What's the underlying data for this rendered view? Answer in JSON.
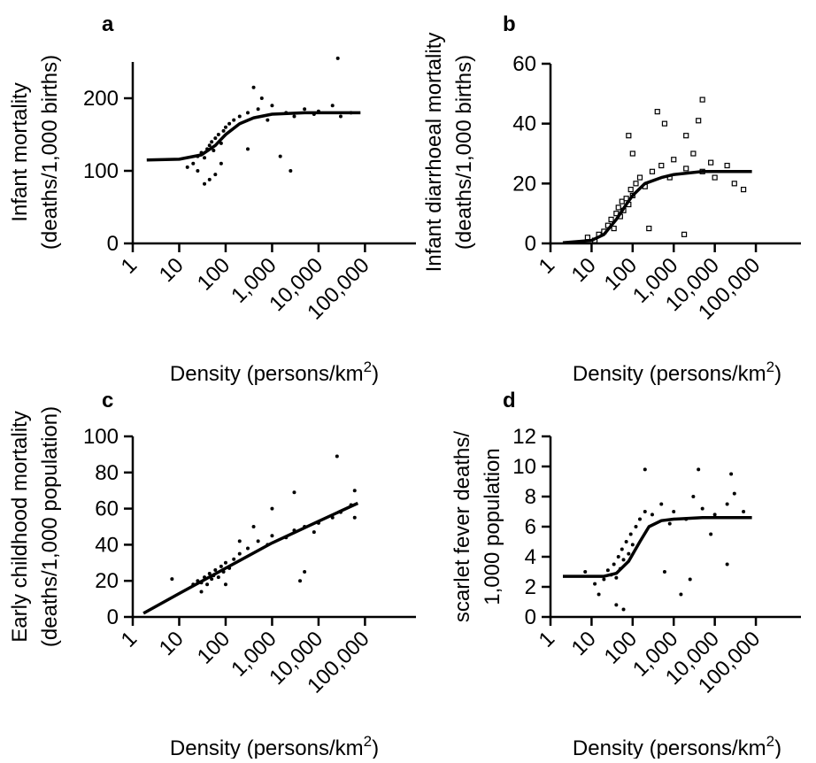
{
  "chart_data": [
    {
      "type": "scatter",
      "panel_label": "a",
      "xlabel_main": "Density (persons/km",
      "xlabel_sup": "2",
      "xlabel_end": ")",
      "ylabel_lines": [
        "Infant mortality",
        "(deaths/1,000 births)"
      ],
      "x_scale": "log",
      "xlim": [
        1,
        100000
      ],
      "ylim": [
        0,
        250
      ],
      "y_ticks": [
        0,
        100,
        200
      ],
      "y_tick_labels": [
        "0",
        "100",
        "200"
      ],
      "x_ticks": [
        1,
        10,
        100,
        1000,
        10000,
        100000
      ],
      "x_tick_labels": [
        "1",
        "10",
        "100",
        "1,000",
        "10,000",
        "100,000"
      ],
      "marker": "dot",
      "points": [
        [
          15,
          105
        ],
        [
          20,
          110
        ],
        [
          25,
          120
        ],
        [
          30,
          125
        ],
        [
          35,
          118
        ],
        [
          40,
          130
        ],
        [
          45,
          135
        ],
        [
          50,
          140
        ],
        [
          55,
          128
        ],
        [
          60,
          145
        ],
        [
          70,
          150
        ],
        [
          80,
          138
        ],
        [
          90,
          155
        ],
        [
          100,
          160
        ],
        [
          120,
          165
        ],
        [
          150,
          170
        ],
        [
          200,
          175
        ],
        [
          300,
          180
        ],
        [
          500,
          185
        ],
        [
          800,
          170
        ],
        [
          1000,
          190
        ],
        [
          2000,
          180
        ],
        [
          3000,
          175
        ],
        [
          5000,
          185
        ],
        [
          8000,
          178
        ],
        [
          10000,
          182
        ],
        [
          20000,
          190
        ],
        [
          30000,
          175
        ],
        [
          50000,
          180
        ],
        [
          26000,
          255
        ],
        [
          45,
          88
        ],
        [
          35,
          82
        ],
        [
          60,
          95
        ],
        [
          25,
          100
        ],
        [
          80,
          110
        ],
        [
          400,
          215
        ],
        [
          600,
          200
        ],
        [
          1500,
          120
        ],
        [
          2500,
          100
        ],
        [
          300,
          130
        ]
      ],
      "fit": [
        [
          2,
          115
        ],
        [
          10,
          116
        ],
        [
          30,
          122
        ],
        [
          60,
          135
        ],
        [
          100,
          150
        ],
        [
          200,
          165
        ],
        [
          400,
          173
        ],
        [
          1000,
          178
        ],
        [
          5000,
          180
        ],
        [
          50000,
          180
        ],
        [
          80000,
          180
        ]
      ]
    },
    {
      "type": "scatter",
      "panel_label": "b",
      "xlabel_main": "Density (persons/km",
      "xlabel_sup": "2",
      "xlabel_end": ")",
      "ylabel_lines": [
        "Infant diarrhoeal mortality",
        "(deaths/1,000 births)"
      ],
      "x_scale": "log",
      "xlim": [
        1,
        100000
      ],
      "ylim": [
        0,
        60
      ],
      "y_ticks": [
        0,
        20,
        40,
        60
      ],
      "y_tick_labels": [
        "0",
        "20",
        "40",
        "60"
      ],
      "x_ticks": [
        1,
        10,
        100,
        1000,
        10000,
        100000
      ],
      "x_tick_labels": [
        "1",
        "10",
        "100",
        "1,000",
        "10,000",
        "100,000"
      ],
      "marker": "square",
      "points": [
        [
          8,
          2
        ],
        [
          12,
          1
        ],
        [
          15,
          3
        ],
        [
          20,
          4
        ],
        [
          25,
          6
        ],
        [
          30,
          8
        ],
        [
          35,
          5
        ],
        [
          40,
          10
        ],
        [
          45,
          12
        ],
        [
          50,
          9
        ],
        [
          55,
          14
        ],
        [
          60,
          11
        ],
        [
          70,
          15
        ],
        [
          80,
          13
        ],
        [
          90,
          18
        ],
        [
          100,
          16
        ],
        [
          120,
          20
        ],
        [
          150,
          22
        ],
        [
          200,
          19
        ],
        [
          300,
          24
        ],
        [
          500,
          26
        ],
        [
          800,
          22
        ],
        [
          1000,
          28
        ],
        [
          2000,
          25
        ],
        [
          3000,
          30
        ],
        [
          5000,
          24
        ],
        [
          8000,
          27
        ],
        [
          10000,
          22
        ],
        [
          20000,
          26
        ],
        [
          30000,
          20
        ],
        [
          50000,
          18
        ],
        [
          400,
          44
        ],
        [
          5000,
          48
        ],
        [
          4000,
          41
        ],
        [
          2000,
          36
        ],
        [
          80,
          36
        ],
        [
          100,
          30
        ],
        [
          250,
          5
        ],
        [
          1800,
          3
        ],
        [
          600,
          40
        ]
      ],
      "fit": [
        [
          2,
          0.2
        ],
        [
          10,
          1
        ],
        [
          20,
          3
        ],
        [
          40,
          8
        ],
        [
          70,
          13
        ],
        [
          100,
          16
        ],
        [
          200,
          20
        ],
        [
          500,
          22
        ],
        [
          1000,
          23
        ],
        [
          5000,
          24
        ],
        [
          20000,
          24
        ],
        [
          80000,
          24
        ]
      ]
    },
    {
      "type": "scatter",
      "panel_label": "c",
      "xlabel_main": "Density (persons/km",
      "xlabel_sup": "2",
      "xlabel_end": ")",
      "ylabel_lines": [
        "Early childhood mortality",
        "(deaths/1,000 population)"
      ],
      "x_scale": "log",
      "xlim": [
        1,
        100000
      ],
      "ylim": [
        0,
        100
      ],
      "y_ticks": [
        0,
        20,
        40,
        60,
        80,
        100
      ],
      "y_tick_labels": [
        "0",
        "20",
        "40",
        "60",
        "80",
        "100"
      ],
      "x_ticks": [
        1,
        10,
        100,
        1000,
        10000,
        100000
      ],
      "x_tick_labels": [
        "1",
        "10",
        "100",
        "1,000",
        "10,000",
        "100,000"
      ],
      "marker": "dot",
      "points": [
        [
          7,
          21
        ],
        [
          20,
          18
        ],
        [
          25,
          20
        ],
        [
          30,
          19
        ],
        [
          35,
          22
        ],
        [
          40,
          18
        ],
        [
          45,
          24
        ],
        [
          50,
          21
        ],
        [
          55,
          23
        ],
        [
          60,
          26
        ],
        [
          70,
          22
        ],
        [
          80,
          28
        ],
        [
          90,
          25
        ],
        [
          100,
          30
        ],
        [
          120,
          27
        ],
        [
          150,
          32
        ],
        [
          200,
          35
        ],
        [
          300,
          38
        ],
        [
          500,
          42
        ],
        [
          800,
          40
        ],
        [
          1000,
          45
        ],
        [
          2000,
          44
        ],
        [
          3000,
          48
        ],
        [
          5000,
          50
        ],
        [
          8000,
          47
        ],
        [
          10000,
          52
        ],
        [
          20000,
          55
        ],
        [
          30000,
          58
        ],
        [
          50000,
          62
        ],
        [
          60000,
          70
        ],
        [
          25000,
          89
        ],
        [
          3000,
          69
        ],
        [
          1000,
          60
        ],
        [
          5000,
          25
        ],
        [
          4000,
          20
        ],
        [
          400,
          50
        ],
        [
          200,
          42
        ],
        [
          30,
          14
        ],
        [
          100,
          18
        ],
        [
          60000,
          55
        ]
      ],
      "fit": [
        [
          1.7,
          2
        ],
        [
          10,
          13
        ],
        [
          100,
          27
        ],
        [
          1000,
          41
        ],
        [
          10000,
          53
        ],
        [
          70000,
          63
        ]
      ]
    },
    {
      "type": "scatter",
      "panel_label": "d",
      "xlabel_main": "Density (persons/km",
      "xlabel_sup": "2",
      "xlabel_end": ")",
      "ylabel_lines": [
        "scarlet fever deaths/",
        "1,000 population"
      ],
      "x_scale": "log",
      "xlim": [
        1,
        100000
      ],
      "ylim": [
        0,
        12
      ],
      "y_ticks": [
        0,
        2,
        4,
        6,
        8,
        10,
        12
      ],
      "y_tick_labels": [
        "0",
        "2",
        "4",
        "6",
        "8",
        "10",
        "12"
      ],
      "x_ticks": [
        1,
        10,
        100,
        1000,
        10000,
        100000
      ],
      "x_tick_labels": [
        "1",
        "10",
        "100",
        "1,000",
        "10,000",
        "100,000"
      ],
      "marker": "dot",
      "points": [
        [
          7,
          3
        ],
        [
          12,
          2.2
        ],
        [
          15,
          1.5
        ],
        [
          20,
          2.5
        ],
        [
          25,
          3.1
        ],
        [
          30,
          2.8
        ],
        [
          35,
          3.5
        ],
        [
          40,
          2.6
        ],
        [
          45,
          4
        ],
        [
          50,
          3.2
        ],
        [
          55,
          4.5
        ],
        [
          60,
          3.8
        ],
        [
          70,
          5
        ],
        [
          80,
          4.2
        ],
        [
          90,
          5.5
        ],
        [
          100,
          4.8
        ],
        [
          120,
          6
        ],
        [
          150,
          6.5
        ],
        [
          200,
          7
        ],
        [
          300,
          6.8
        ],
        [
          500,
          7.5
        ],
        [
          800,
          6.2
        ],
        [
          1000,
          7
        ],
        [
          2000,
          6.5
        ],
        [
          3000,
          8
        ],
        [
          5000,
          7.2
        ],
        [
          8000,
          5.5
        ],
        [
          10000,
          6.8
        ],
        [
          20000,
          7.5
        ],
        [
          30000,
          8.2
        ],
        [
          50000,
          7
        ],
        [
          200,
          9.8
        ],
        [
          4000,
          9.8
        ],
        [
          25000,
          9.5
        ],
        [
          1500,
          1.5
        ],
        [
          2500,
          2.5
        ],
        [
          60,
          0.5
        ],
        [
          40,
          0.8
        ],
        [
          600,
          3
        ],
        [
          20000,
          3.5
        ]
      ],
      "fit": [
        [
          2,
          2.7
        ],
        [
          20,
          2.7
        ],
        [
          40,
          2.9
        ],
        [
          80,
          3.7
        ],
        [
          150,
          5
        ],
        [
          250,
          6
        ],
        [
          500,
          6.4
        ],
        [
          1000,
          6.5
        ],
        [
          5000,
          6.6
        ],
        [
          80000,
          6.6
        ]
      ]
    }
  ]
}
